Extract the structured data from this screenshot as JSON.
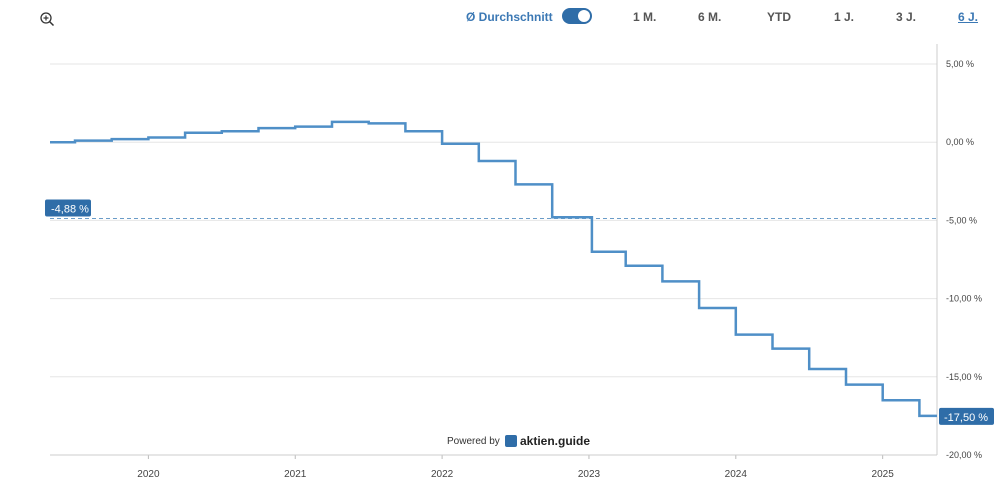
{
  "toolbar": {
    "average_label": "Ø Durchschnitt",
    "average_toggle_on": true,
    "ranges": [
      "1 M.",
      "6 M.",
      "YTD",
      "1 J.",
      "3 J.",
      "6 J."
    ],
    "active_range": "6 J."
  },
  "branding": {
    "powered_by": "Powered by",
    "brand_name": "aktien.guide"
  },
  "colors": {
    "line": "#4f8fc7",
    "accent": "#2f6da8",
    "average_line": "#6a9cc8",
    "grid": "#e6e6e6"
  },
  "chart_data": {
    "type": "line",
    "title": "",
    "xlabel": "",
    "ylabel": "",
    "x_ticks": [
      "2020",
      "2021",
      "2022",
      "2023",
      "2024",
      "2025"
    ],
    "y_ticks": [
      "5,00 %",
      "0,00 %",
      "-5,00 %",
      "-10,00 %",
      "-15,00 %",
      "-20,00 %"
    ],
    "ylim": [
      -20,
      5
    ],
    "xlim": [
      2019.33,
      2025.37
    ],
    "y_axis_position": "right",
    "grid": true,
    "average": {
      "value": -4.88,
      "label": "-4,88 %"
    },
    "last_value": {
      "value": -17.5,
      "label": "-17,50 %"
    },
    "series": [
      {
        "x": [
          2019.33,
          2019.5,
          2019.5,
          2019.75,
          2019.75,
          2020.0,
          2020.0,
          2020.25,
          2020.25,
          2020.5,
          2020.5,
          2020.75,
          2020.75,
          2021.0,
          2021.0,
          2021.25,
          2021.25,
          2021.5,
          2021.5,
          2021.75,
          2021.75,
          2022.0,
          2022.0,
          2022.25,
          2022.25,
          2022.5,
          2022.5,
          2022.75,
          2022.75,
          2023.02,
          2023.02,
          2023.25,
          2023.25,
          2023.5,
          2023.5,
          2023.75,
          2023.75,
          2024.0,
          2024.0,
          2024.25,
          2024.25,
          2024.5,
          2024.5,
          2024.75,
          2024.75,
          2025.0,
          2025.0,
          2025.25,
          2025.25,
          2025.37
        ],
        "y": [
          0.0,
          0.0,
          0.1,
          0.1,
          0.2,
          0.2,
          0.3,
          0.3,
          0.6,
          0.6,
          0.7,
          0.7,
          0.9,
          0.9,
          1.0,
          1.0,
          1.3,
          1.3,
          1.2,
          1.2,
          0.7,
          0.7,
          -0.1,
          -0.1,
          -1.2,
          -1.2,
          -2.7,
          -2.7,
          -4.8,
          -4.8,
          -7.0,
          -7.0,
          -7.9,
          -7.9,
          -8.9,
          -8.9,
          -10.6,
          -10.6,
          -12.3,
          -12.3,
          -13.2,
          -13.2,
          -14.5,
          -14.5,
          -15.5,
          -15.5,
          -16.5,
          -16.5,
          -17.5,
          -17.5
        ]
      }
    ]
  }
}
